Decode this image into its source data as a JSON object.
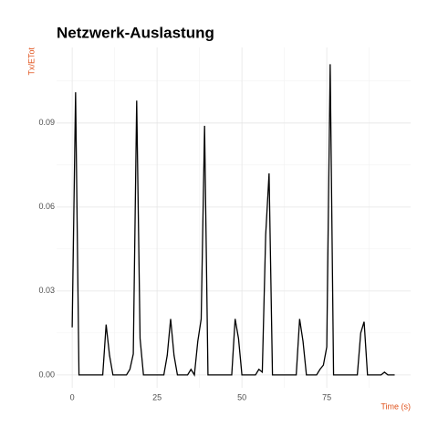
{
  "chart_data": {
    "type": "line",
    "title": "Netzwerk-Auslastung",
    "x_label": "Time (s)",
    "y_label": "Tx/ETot",
    "x": [
      0,
      1,
      2,
      3,
      4,
      5,
      6,
      7,
      8,
      9,
      10,
      11,
      12,
      13,
      14,
      15,
      16,
      17,
      18,
      19,
      20,
      21,
      22,
      23,
      24,
      25,
      26,
      27,
      28,
      29,
      30,
      31,
      32,
      33,
      34,
      35,
      36,
      37,
      38,
      39,
      40,
      41,
      42,
      43,
      44,
      45,
      46,
      47,
      48,
      49,
      50,
      51,
      52,
      53,
      54,
      55,
      56,
      57,
      58,
      59,
      60,
      61,
      62,
      63,
      64,
      65,
      66,
      67,
      68,
      69,
      70,
      71,
      72,
      73,
      74,
      75,
      76,
      77,
      78,
      79,
      80,
      81,
      82,
      83,
      84,
      85,
      86,
      87,
      88,
      89,
      90,
      91,
      92,
      93,
      94,
      95
    ],
    "series": [
      {
        "name": "Tx/ETot",
        "color": "#000000",
        "values": [
          0.017,
          0.101,
          0,
          0,
          0,
          0,
          0,
          0,
          0,
          0,
          0.018,
          0.007,
          0,
          0,
          0,
          0,
          0,
          0.002,
          0.0075,
          0.098,
          0.013,
          0,
          0,
          0,
          0,
          0,
          0,
          0,
          0.007,
          0.02,
          0.007,
          0,
          0,
          0,
          0,
          0.002,
          0,
          0.012,
          0.02,
          0.089,
          0,
          0,
          0,
          0,
          0,
          0,
          0,
          0,
          0.02,
          0.013,
          0,
          0,
          0,
          0,
          0,
          0.002,
          0.001,
          0.05,
          0.072,
          0,
          0,
          0,
          0,
          0,
          0,
          0,
          0,
          0.02,
          0.012,
          0,
          0,
          0,
          0,
          0.002,
          0.0035,
          0.01,
          0.111,
          0,
          0,
          0,
          0,
          0,
          0,
          0,
          0,
          0.015,
          0.019,
          0,
          0,
          0,
          0,
          0,
          0.001,
          0,
          0,
          0
        ]
      }
    ],
    "xlim": [
      -4.6,
      99.7
    ],
    "ylim": [
      -0.0046,
      0.117
    ],
    "xticks": [
      0,
      25,
      50,
      75
    ],
    "yticks": [
      {
        "value": 0,
        "label": "0.00"
      },
      {
        "value": 0.03,
        "label": "0.03"
      },
      {
        "value": 0.06,
        "label": "0.06"
      },
      {
        "value": 0.09,
        "label": "0.09"
      }
    ],
    "x_minor_ticks": [
      12.5,
      37.5,
      62.5,
      87.5
    ],
    "y_minor_ticks": [
      0.015,
      0.045,
      0.075,
      0.105
    ],
    "grid": true,
    "axis_title_color": "#e0541e"
  }
}
